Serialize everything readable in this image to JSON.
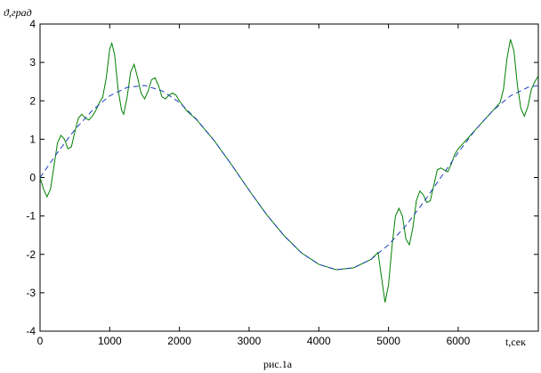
{
  "chart_data": {
    "type": "line",
    "y_label": "ϑ,град",
    "x_label": "t,сек",
    "caption": "рис.1а",
    "xlim": [
      0,
      7150
    ],
    "ylim": [
      -4,
      4
    ],
    "xticks": [
      0,
      1000,
      2000,
      3000,
      4000,
      5000,
      6000
    ],
    "yticks": [
      -4,
      -3,
      -2,
      -1,
      0,
      1,
      2,
      3,
      4
    ],
    "grid": false,
    "series": [
      {
        "color": "#008000",
        "dashed": false,
        "x": [
          0,
          50,
          100,
          150,
          200,
          250,
          300,
          350,
          400,
          450,
          500,
          550,
          600,
          650,
          700,
          750,
          800,
          850,
          900,
          950,
          1000,
          1030,
          1070,
          1120,
          1170,
          1200,
          1250,
          1300,
          1350,
          1400,
          1450,
          1500,
          1550,
          1600,
          1650,
          1700,
          1750,
          1800,
          1850,
          1900,
          1950,
          2000,
          2100,
          2250,
          2500,
          2750,
          3000,
          3250,
          3500,
          3750,
          4000,
          4250,
          4500,
          4750,
          4850,
          4900,
          4950,
          5000,
          5050,
          5100,
          5150,
          5200,
          5250,
          5300,
          5350,
          5400,
          5450,
          5500,
          5550,
          5600,
          5650,
          5700,
          5750,
          5800,
          5850,
          5900,
          5950,
          6000,
          6250,
          6500,
          6600,
          6650,
          6700,
          6750,
          6800,
          6850,
          6900,
          6950,
          7000,
          7050,
          7100,
          7150
        ],
        "values": [
          0,
          -0.3,
          -0.5,
          -0.3,
          0.3,
          0.9,
          1.1,
          1.0,
          0.75,
          0.8,
          1.2,
          1.55,
          1.65,
          1.55,
          1.5,
          1.6,
          1.75,
          1.95,
          2.1,
          2.6,
          3.35,
          3.5,
          3.2,
          2.3,
          1.75,
          1.65,
          2.1,
          2.75,
          2.95,
          2.6,
          2.2,
          2.05,
          2.25,
          2.55,
          2.6,
          2.4,
          2.1,
          2.05,
          2.15,
          2.2,
          2.15,
          2.0,
          1.75,
          1.5,
          0.96,
          0.33,
          -0.33,
          -0.96,
          -1.51,
          -1.96,
          -2.26,
          -2.4,
          -2.35,
          -2.13,
          -1.95,
          -2.6,
          -3.25,
          -2.8,
          -1.8,
          -1.0,
          -0.8,
          -1.0,
          -1.6,
          -1.75,
          -1.3,
          -0.6,
          -0.35,
          -0.45,
          -0.65,
          -0.6,
          -0.2,
          0.2,
          0.25,
          0.2,
          0.15,
          0.35,
          0.6,
          0.75,
          1.25,
          1.75,
          1.95,
          2.3,
          3.1,
          3.6,
          3.3,
          2.4,
          1.8,
          1.6,
          1.85,
          2.3,
          2.5,
          2.65
        ]
      },
      {
        "color": "#1f3fbf",
        "dashed": true,
        "x": [
          0,
          250,
          500,
          750,
          1000,
          1250,
          1500,
          1750,
          2000,
          2250,
          2500,
          2750,
          3000,
          3250,
          3500,
          3750,
          4000,
          4250,
          4500,
          4750,
          5000,
          5250,
          5500,
          5750,
          6000,
          6250,
          6500,
          6750,
          7000,
          7150
        ],
        "values": [
          0,
          0.65,
          1.25,
          1.75,
          2.13,
          2.35,
          2.4,
          2.26,
          1.96,
          1.51,
          0.96,
          0.33,
          -0.33,
          -0.96,
          -1.51,
          -1.96,
          -2.26,
          -2.4,
          -2.35,
          -2.13,
          -1.75,
          -1.25,
          -0.65,
          0,
          0.65,
          1.25,
          1.75,
          2.13,
          2.35,
          2.4
        ]
      }
    ]
  }
}
